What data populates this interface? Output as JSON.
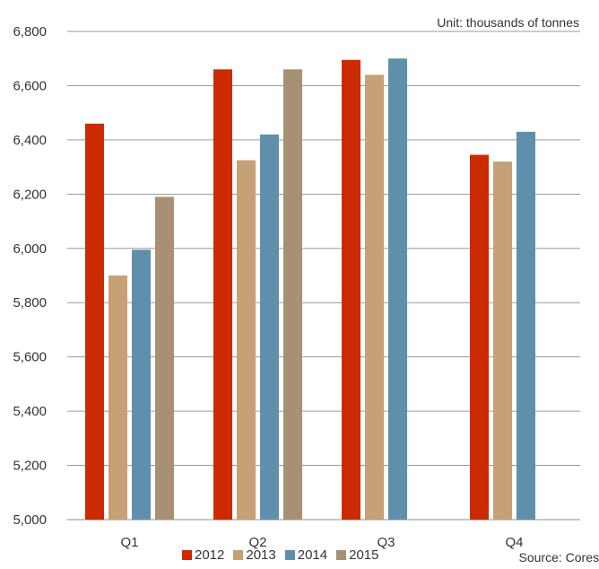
{
  "chart_data": {
    "type": "bar",
    "unit_note": "Unit: thousands of tonnes",
    "source": "Source: Cores",
    "categories": [
      "Q1",
      "Q2",
      "Q3",
      "Q4"
    ],
    "ylim": [
      5000,
      6800
    ],
    "yticks": [
      5000,
      5200,
      5400,
      5600,
      5800,
      6000,
      6200,
      6400,
      6600,
      6800
    ],
    "ytick_labels": [
      "5,000",
      "5,200",
      "5,400",
      "5,600",
      "5,800",
      "6,000",
      "6,200",
      "6,400",
      "6,600",
      "6,800"
    ],
    "grid": true,
    "legend_position": "bottom",
    "series": [
      {
        "name": "2012",
        "color": "#cc2a00",
        "values": [
          6460,
          6660,
          6695,
          6345
        ]
      },
      {
        "name": "2013",
        "color": "#c6a077",
        "values": [
          5900,
          6325,
          6640,
          6320
        ]
      },
      {
        "name": "2014",
        "color": "#5f8fab",
        "values": [
          5995,
          6420,
          6700,
          6430
        ]
      },
      {
        "name": "2015",
        "color": "#a89075",
        "values": [
          6190,
          6660,
          null,
          null
        ]
      }
    ]
  }
}
